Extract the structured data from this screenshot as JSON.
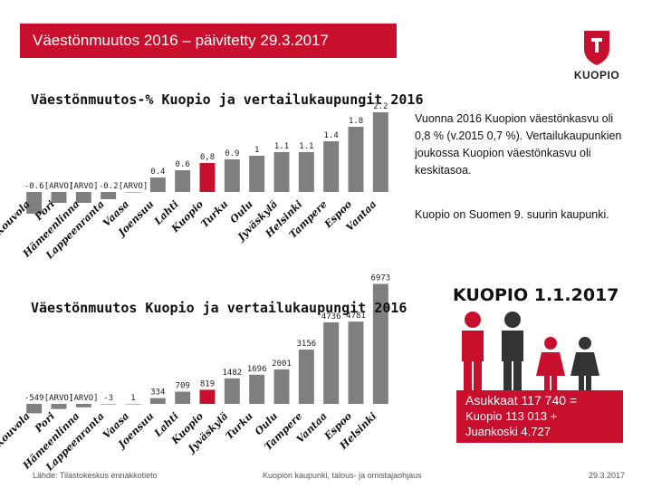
{
  "header": {
    "title": "Väestönmuutos 2016 – päivitetty 29.3.2017"
  },
  "logo": {
    "text": "KUOPIO"
  },
  "notes": {
    "top": "Vuonna 2016 Kuopion väestönkasvu oli 0,8 % (v.2015 0,7 %). Vertailukaupunkien joukossa Kuopion väestönkasvu oli keskitasoa.",
    "rank": "Kuopio on Suomen 9. suurin kaupunki."
  },
  "infographic": {
    "title": "KUOPIO 1.1.2017",
    "lines": [
      "Asukkaat 117 740 =",
      "Kuopio      113 013 +",
      "Juankoski    4.727"
    ]
  },
  "footer": {
    "source": "Lähde: Tilastokeskus ennakkotieto",
    "org": "Kuopion kaupunki, talous- ja omistajaohjaus",
    "date": "29.3.2017"
  },
  "chart_data": [
    {
      "type": "bar",
      "title": "Väestönmuutos-% Kuopio ja vertailukaupungit 2016",
      "categories": [
        "Kouvola",
        "Pori",
        "Hämeenlinna",
        "Lappeenranta",
        "Vaasa",
        "Joensuu",
        "Lahti",
        "Kuopio",
        "Turku",
        "Oulu",
        "Jyväskylä",
        "Helsinki",
        "Tampere",
        "Espoo",
        "Vantaa"
      ],
      "values": [
        -0.6,
        -0.3,
        -0.3,
        -0.2,
        0.0,
        0.4,
        0.6,
        0.8,
        0.9,
        1.0,
        1.1,
        1.1,
        1.4,
        1.8,
        2.2
      ],
      "data_labels": [
        "-0.6",
        "[ARVO]",
        "[ARVO]",
        "-0.2",
        "[ARVO]",
        "0.4",
        "0.6",
        "0,8",
        "0.9",
        "1",
        "1.1",
        "1.1",
        "1.4",
        "1.8",
        "2.2"
      ],
      "highlight": "Kuopio",
      "colors": {
        "bar": "#7f7f7f",
        "highlight": "#c8102e"
      }
    },
    {
      "type": "bar",
      "title": "Väestönmuutos Kuopio ja vertailukaupungit 2016",
      "categories": [
        "Kouvola",
        "Pori",
        "Hämeenlinna",
        "Lappeenranta",
        "Vaasa",
        "Joensuu",
        "Lahti",
        "Kuopio",
        "Jyväskylä",
        "Turku",
        "Oulu",
        "Tampere",
        "Vantaa",
        "Espoo",
        "Helsinki"
      ],
      "values": [
        -549,
        -300,
        -200,
        -3,
        1,
        334,
        709,
        819,
        1482,
        1696,
        2001,
        3156,
        4736,
        4781,
        6973
      ],
      "data_labels": [
        "-549",
        "[ARVO]",
        "[ARVO]",
        "-3",
        "1",
        "334",
        "709",
        "819",
        "1482",
        "1696",
        "2001",
        "3156",
        "4736",
        "4781",
        "6973"
      ],
      "highlight": "Kuopio",
      "colors": {
        "bar": "#7f7f7f",
        "highlight": "#c8102e"
      }
    }
  ]
}
